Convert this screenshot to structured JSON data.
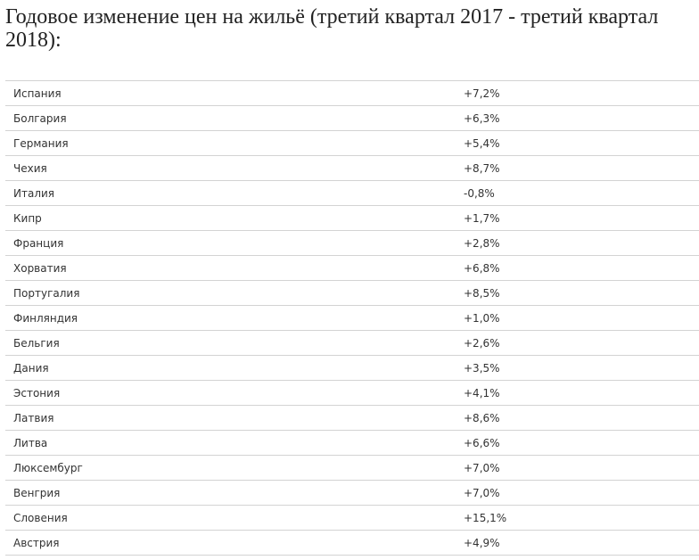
{
  "title": "Годовое изменение цен на жильё (третий квартал 2017 - третий квартал 2018):",
  "table": {
    "rows": [
      {
        "country": "Испания",
        "change": "+7,2%"
      },
      {
        "country": "Болгария",
        "change": "+6,3%"
      },
      {
        "country": "Германия",
        "change": "+5,4%"
      },
      {
        "country": "Чехия",
        "change": "+8,7%"
      },
      {
        "country": "Италия",
        "change": "-0,8%"
      },
      {
        "country": "Кипр",
        "change": "+1,7%"
      },
      {
        "country": "Франция",
        "change": "+2,8%"
      },
      {
        "country": "Хорватия",
        "change": "+6,8%"
      },
      {
        "country": "Португалия",
        "change": "+8,5%"
      },
      {
        "country": "Финляндия",
        "change": "+1,0%"
      },
      {
        "country": "Бельгия",
        "change": "+2,6%"
      },
      {
        "country": "Дания",
        "change": "+3,5%"
      },
      {
        "country": "Эстония",
        "change": "+4,1%"
      },
      {
        "country": "Латвия",
        "change": "+8,6%"
      },
      {
        "country": "Литва",
        "change": "+6,6%"
      },
      {
        "country": "Люксембург",
        "change": "+7,0%"
      },
      {
        "country": "Венгрия",
        "change": "+7,0%"
      },
      {
        "country": "Словения",
        "change": "+15,1%"
      },
      {
        "country": "Австрия",
        "change": "+4,9%"
      }
    ]
  }
}
